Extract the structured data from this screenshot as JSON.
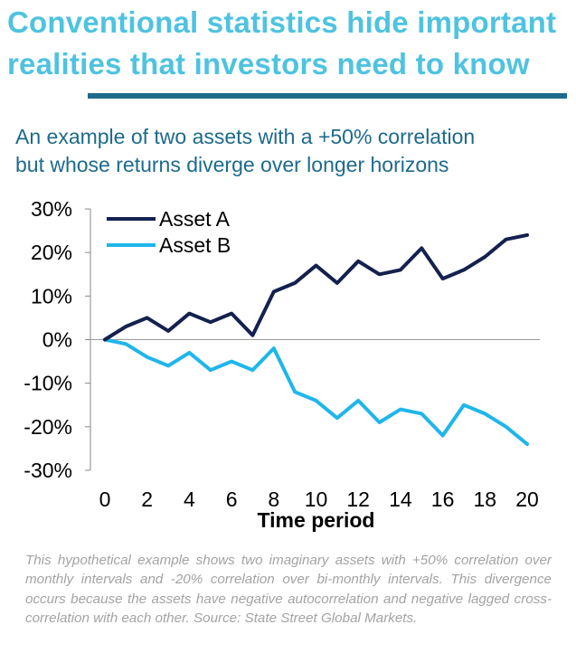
{
  "headline": {
    "line1": "Conventional statistics hide important",
    "line2": "realities that investors need to know"
  },
  "subtitle": {
    "line1": "An example of two assets with a +50% correlation",
    "line2": "but whose returns diverge over longer horizons"
  },
  "chart_data": {
    "type": "line",
    "title": "",
    "xlabel": "Time period",
    "ylabel": "",
    "x": [
      0,
      1,
      2,
      3,
      4,
      5,
      6,
      7,
      8,
      9,
      10,
      11,
      12,
      13,
      14,
      15,
      16,
      17,
      18,
      19,
      20
    ],
    "xticks": [
      0,
      2,
      4,
      6,
      8,
      10,
      12,
      14,
      16,
      18,
      20
    ],
    "xlim": [
      0,
      20
    ],
    "yticks": [
      30,
      20,
      10,
      0,
      -10,
      -20,
      -30
    ],
    "ytick_labels": [
      "30%",
      "20%",
      "10%",
      "0%",
      "-10%",
      "-20%",
      "-30%"
    ],
    "ylim": [
      -30,
      30
    ],
    "legend_position": "top-left",
    "series": [
      {
        "name": "Asset A",
        "color": "#14214f",
        "values": [
          0,
          3,
          5,
          2,
          6,
          4,
          6,
          1,
          11,
          13,
          17,
          13,
          18,
          15,
          16,
          21,
          14,
          16,
          19,
          23,
          24
        ]
      },
      {
        "name": "Asset B",
        "color": "#1fb6ea",
        "values": [
          0,
          -1,
          -4,
          -6,
          -3,
          -7,
          -5,
          -7,
          -2,
          -12,
          -14,
          -18,
          -14,
          -19,
          -16,
          -17,
          -22,
          -15,
          -17,
          -20,
          -24
        ]
      }
    ]
  },
  "caption": "This hypothetical example shows two imaginary assets with +50% correlation over monthly intervals and -20% correlation over bi-monthly intervals. This divergence occurs because the assets have negative autocorrelation and negative lagged cross-correlation with each other. Source: State Street Global Markets."
}
